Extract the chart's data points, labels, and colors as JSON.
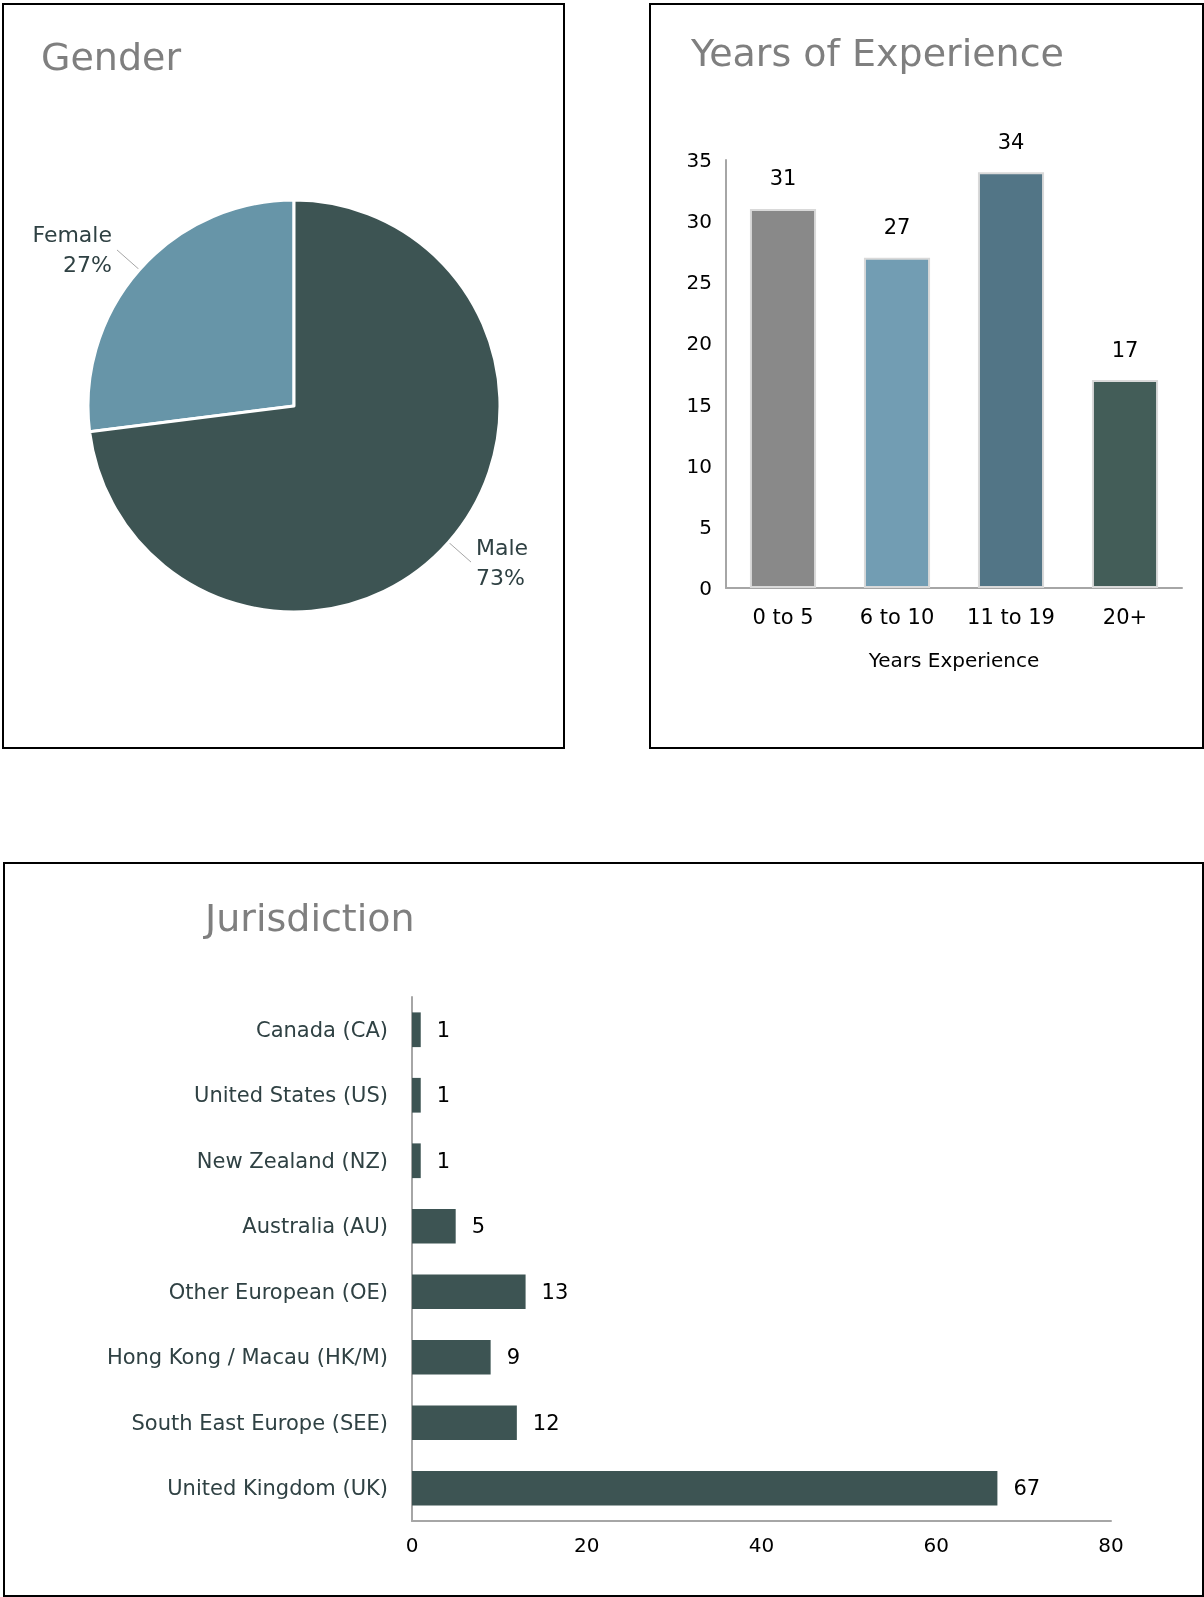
{
  "chart_data": [
    {
      "type": "pie",
      "title": "Gender",
      "categories": [
        "Female",
        "Male"
      ],
      "values": [
        27,
        73
      ],
      "colors": [
        "#6795a8",
        "#3d5453"
      ],
      "value_labels": [
        "27%",
        "73%"
      ]
    },
    {
      "type": "bar",
      "title": "Years of Experience",
      "xlabel": "Years Experience",
      "categories": [
        "0 to 5",
        "6 to 10",
        "11 to 19",
        "20+"
      ],
      "values": [
        31,
        27,
        34,
        17
      ],
      "colors": [
        "#898989",
        "#729db3",
        "#527586",
        "#435d58"
      ],
      "ylim": [
        0,
        35
      ],
      "yticks": [
        0,
        5,
        10,
        15,
        20,
        25,
        30,
        35
      ],
      "data_labels": true
    },
    {
      "type": "bar",
      "orientation": "horizontal",
      "title": "Jurisdiction",
      "categories": [
        "Canada (CA)",
        "United States (US)",
        "New Zealand (NZ)",
        "Australia (AU)",
        "Other European (OE)",
        "Hong Kong / Macau (HK/M)",
        "South East Europe (SEE)",
        "United Kingdom (UK)"
      ],
      "values": [
        1,
        1,
        1,
        5,
        13,
        9,
        12,
        67
      ],
      "color": "#3d5453",
      "xlim": [
        0,
        80
      ],
      "xticks": [
        0,
        20,
        40,
        60,
        80
      ],
      "data_labels": true
    }
  ]
}
